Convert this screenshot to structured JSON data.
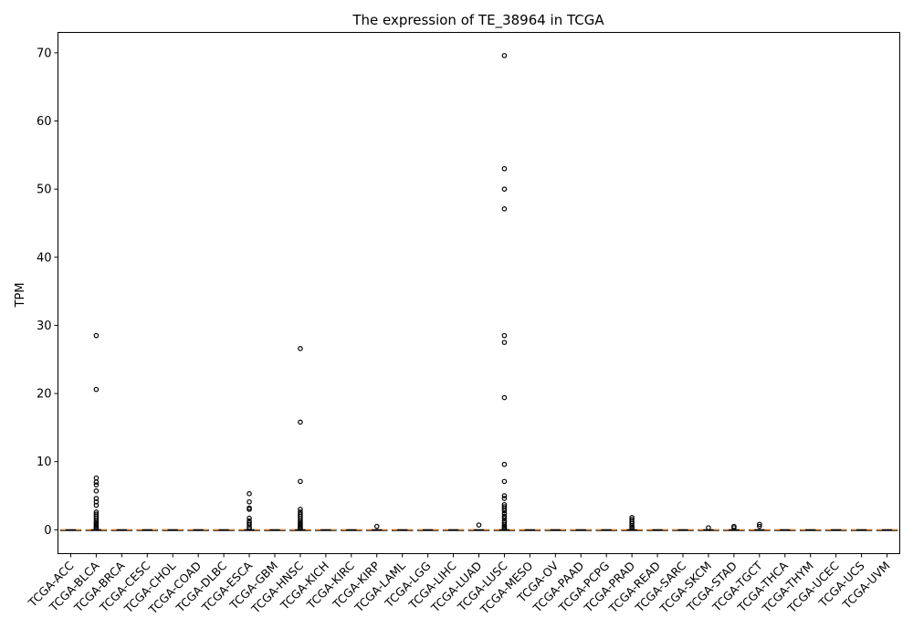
{
  "chart_data": {
    "type": "box",
    "title": "The expression of TE_38964 in TCGA",
    "xlabel": "",
    "ylabel": "TPM",
    "ylim": [
      -3.5,
      73
    ],
    "yticks": [
      0,
      10,
      20,
      30,
      40,
      50,
      60,
      70
    ],
    "grid": false,
    "categories": [
      "TCGA-ACC",
      "TCGA-BLCA",
      "TCGA-BRCA",
      "TCGA-CESC",
      "TCGA-CHOL",
      "TCGA-COAD",
      "TCGA-DLBC",
      "TCGA-ESCA",
      "TCGA-GBM",
      "TCGA-HNSC",
      "TCGA-KICH",
      "TCGA-KIRC",
      "TCGA-KIRP",
      "TCGA-LAML",
      "TCGA-LGG",
      "TCGA-LIHC",
      "TCGA-LUAD",
      "TCGA-LUSC",
      "TCGA-MESO",
      "TCGA-OV",
      "TCGA-PAAD",
      "TCGA-PCPG",
      "TCGA-PRAD",
      "TCGA-READ",
      "TCGA-SARC",
      "TCGA-SKCM",
      "TCGA-STAD",
      "TCGA-TGCT",
      "TCGA-THCA",
      "TCGA-THYM",
      "TCGA-UCEC",
      "TCGA-UCS",
      "TCGA-UVM"
    ],
    "box_stats": {
      "q1": 0,
      "median": 0,
      "q3": 0,
      "whisker_low": 0,
      "whisker_high": 0
    },
    "outliers": [
      [],
      [
        28.5,
        20.6,
        7.6,
        7.0,
        6.6,
        5.7,
        4.6,
        4.1,
        3.6,
        2.6,
        2.3,
        2.0,
        1.7,
        1.4,
        1.1,
        0.9,
        0.7,
        0.5,
        0.3,
        0.2
      ],
      [],
      [],
      [],
      [],
      [],
      [
        5.3,
        4.1,
        3.2,
        3.0,
        1.7,
        1.3,
        1.0,
        0.7,
        0.4,
        0.2
      ],
      [],
      [
        26.6,
        15.8,
        7.1,
        3.0,
        2.6,
        2.3,
        2.0,
        1.7,
        1.4,
        1.1,
        0.9,
        0.7,
        0.5,
        0.3,
        0.2
      ],
      [],
      [],
      [
        0.5
      ],
      [],
      [],
      [],
      [
        0.7
      ],
      [
        69.6,
        53.0,
        50.0,
        47.1,
        28.5,
        27.5,
        19.4,
        9.6,
        7.1,
        5.0,
        4.6,
        3.7,
        3.4,
        3.1,
        2.8,
        2.4,
        2.0,
        1.7,
        1.3,
        1.0,
        0.7,
        0.5,
        0.3,
        0.2
      ],
      [],
      [],
      [],
      [],
      [
        1.8,
        1.5,
        1.2,
        0.9,
        0.6,
        0.4,
        0.2
      ],
      [],
      [],
      [
        0.3
      ],
      [
        0.5,
        0.3
      ],
      [
        0.8,
        0.5
      ],
      [],
      [],
      [],
      [],
      []
    ]
  }
}
